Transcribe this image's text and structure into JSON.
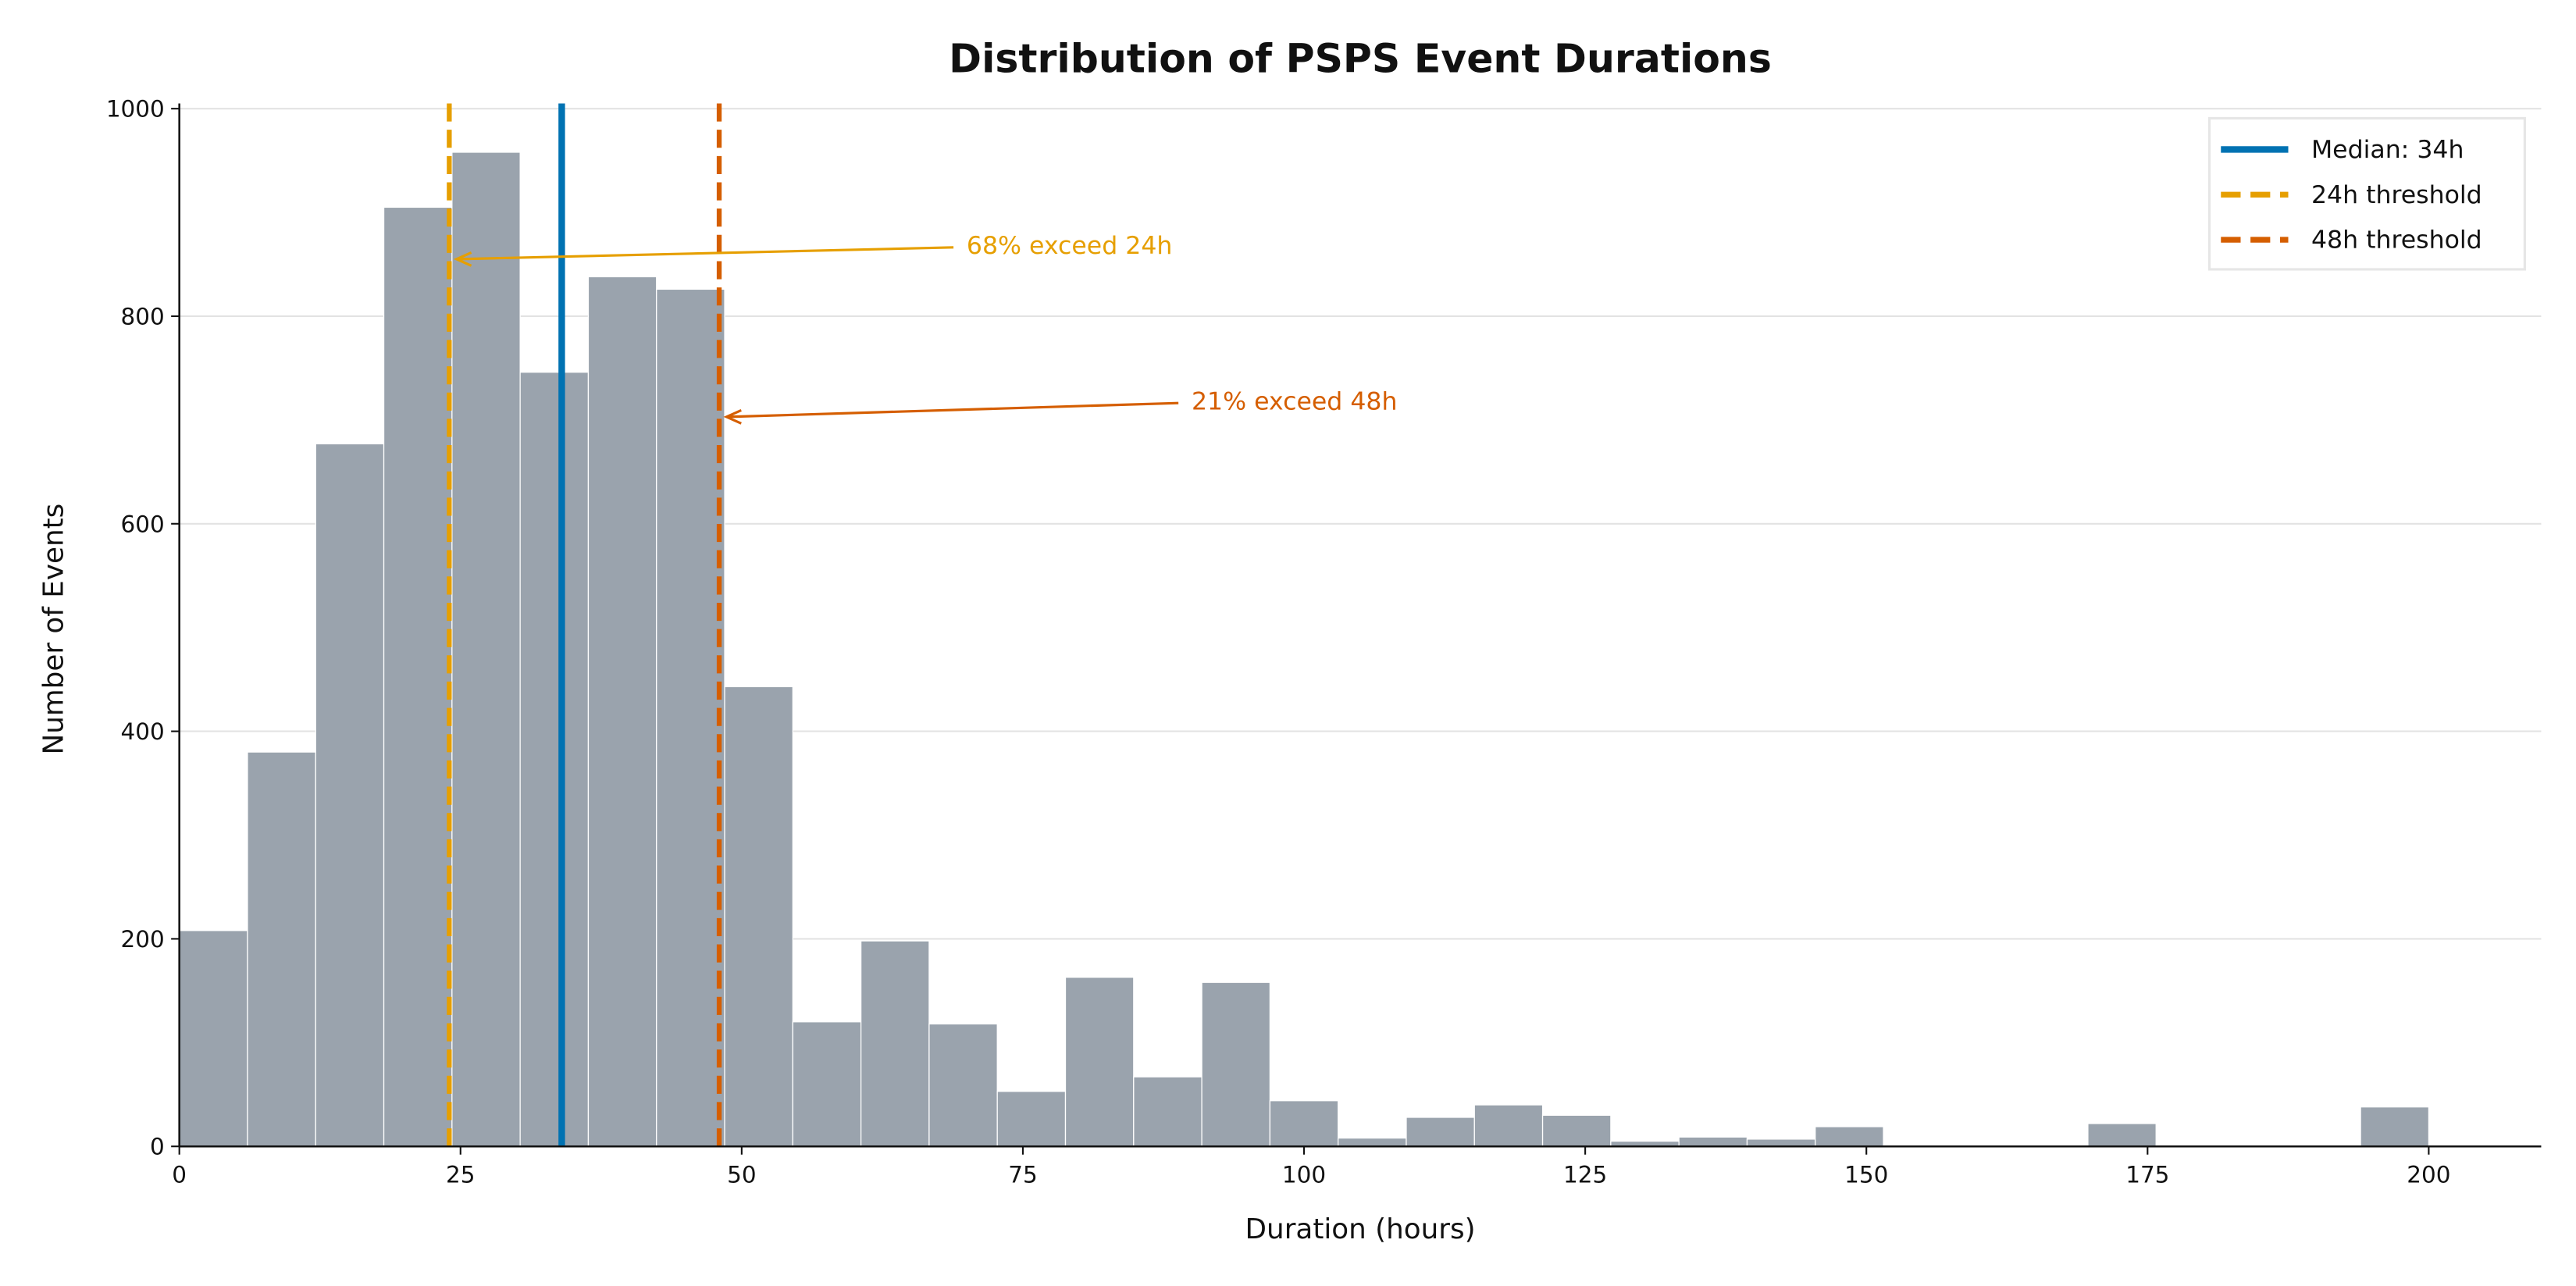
{
  "chart_data": {
    "type": "bar",
    "title": "Distribution of PSPS Event Durations",
    "xlabel": "Duration (hours)",
    "ylabel": "Number of Events",
    "xlim": [
      0,
      210
    ],
    "ylim": [
      0,
      1005
    ],
    "xticks": [
      0,
      25,
      50,
      75,
      100,
      125,
      150,
      175,
      200
    ],
    "yticks": [
      0,
      200,
      400,
      600,
      800,
      1000
    ],
    "grid": "horizontal",
    "bin_range": [
      0,
      200
    ],
    "values": [
      208,
      380,
      677,
      905,
      958,
      746,
      838,
      826,
      443,
      120,
      198,
      118,
      53,
      163,
      67,
      158,
      44,
      8,
      28,
      40,
      30,
      5,
      9,
      7,
      19,
      0,
      0,
      0,
      22,
      0,
      0,
      0,
      38
    ],
    "bar_color": "#9aa3ad",
    "lines": [
      {
        "label": "Median: 34h",
        "x": 34,
        "color": "#0072b2",
        "style": "solid"
      },
      {
        "label": "24h threshold",
        "x": 24,
        "color": "#e69f00",
        "style": "dashed"
      },
      {
        "label": "48h threshold",
        "x": 48,
        "color": "#d55e00",
        "style": "dashed"
      }
    ],
    "annotations": [
      {
        "text": "68% exceed 24h",
        "xy": [
          24.5,
          855
        ],
        "xytext": [
          70,
          860
        ],
        "color": "#e69f00"
      },
      {
        "text": "21% exceed 48h",
        "xy": [
          48.5,
          703
        ],
        "xytext": [
          90,
          710
        ],
        "color": "#d55e00"
      }
    ],
    "legend": "top-right"
  }
}
